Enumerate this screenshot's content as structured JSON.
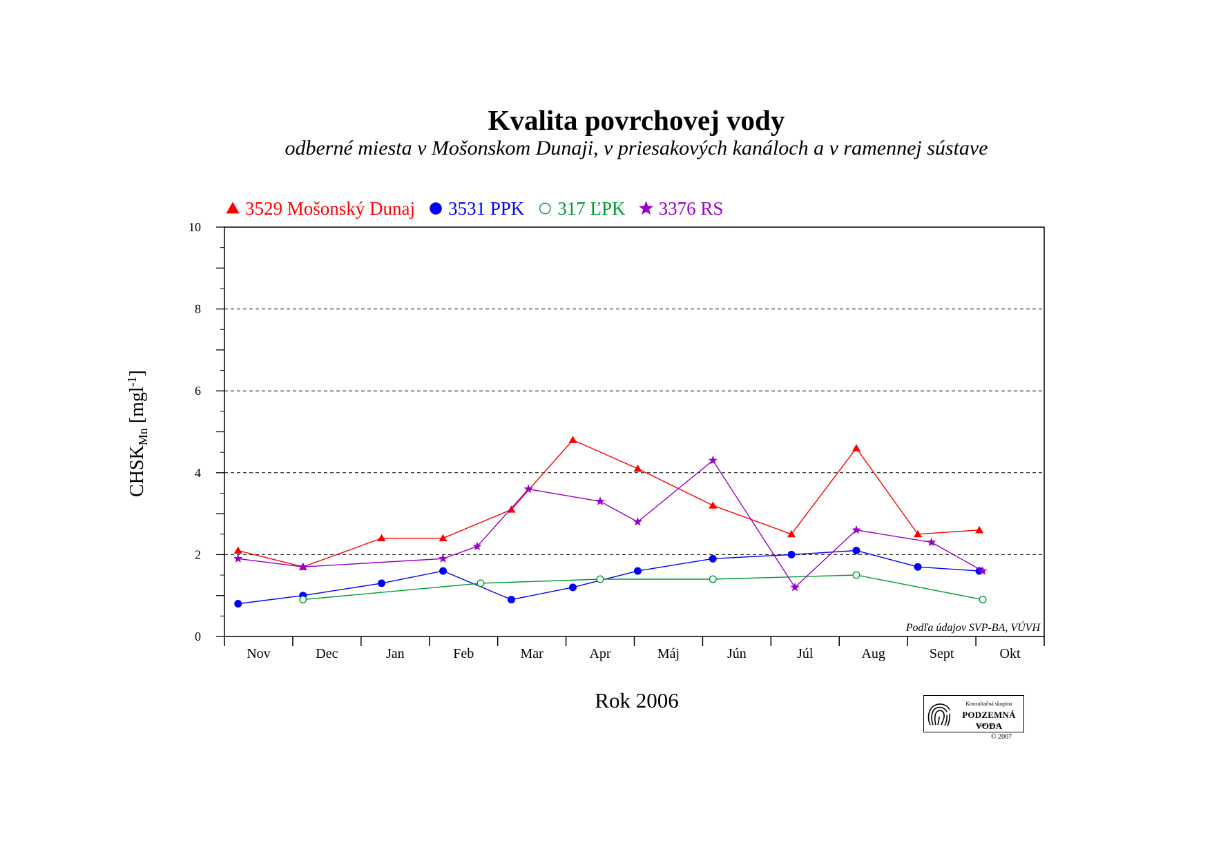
{
  "chart_data": {
    "type": "line",
    "title": "Kvalita povrchovej vody",
    "subtitle": "odberné miesta v Mošonskom Dunaji, v priesakových kanáloch a v ramennej sústave",
    "xlabel": "Rok 2006",
    "ylabel": "CHSK",
    "ylabel_subscript": "Mn",
    "ylabel_unit_prefix": " [mgl",
    "ylabel_unit_superscript": "-1",
    "ylabel_unit_suffix": "]",
    "ylim": [
      0,
      10
    ],
    "y_ticks": [
      0,
      2,
      4,
      6,
      8,
      10
    ],
    "grid_y": [
      2,
      4,
      6,
      8
    ],
    "grid": "dashed horizontal",
    "legend_position": "top-left",
    "categories": [
      "Nov",
      "Dec",
      "Jan",
      "Feb",
      "Mar",
      "Apr",
      "Máj",
      "Jún",
      "Júl",
      "Aug",
      "Sept",
      "Okt"
    ],
    "x_ticks": [
      0,
      1,
      2,
      3,
      4,
      5,
      6,
      7,
      8,
      9,
      10,
      11,
      12
    ],
    "source_note": "Podľa údajov SVP-BA, VÚVH",
    "series": [
      {
        "name": "3529 Mošonský Dunaj",
        "color": "#ff0000",
        "marker": "triangle",
        "points": [
          [
            0.2,
            2.1
          ],
          [
            1.15,
            1.7
          ],
          [
            2.3,
            2.4
          ],
          [
            3.2,
            2.4
          ],
          [
            4.2,
            3.1
          ],
          [
            5.1,
            4.8
          ],
          [
            6.05,
            4.1
          ],
          [
            7.15,
            3.2
          ],
          [
            8.3,
            2.5
          ],
          [
            9.25,
            4.6
          ],
          [
            10.15,
            2.5
          ],
          [
            11.05,
            2.6
          ]
        ]
      },
      {
        "name": "3531 PPK",
        "color": "#0000ff",
        "marker": "circle-filled",
        "points": [
          [
            0.2,
            0.8
          ],
          [
            1.15,
            1.0
          ],
          [
            2.3,
            1.3
          ],
          [
            3.2,
            1.6
          ],
          [
            4.2,
            0.9
          ],
          [
            5.1,
            1.2
          ],
          [
            6.05,
            1.6
          ],
          [
            7.15,
            1.9
          ],
          [
            8.3,
            2.0
          ],
          [
            9.25,
            2.1
          ],
          [
            10.15,
            1.7
          ],
          [
            11.05,
            1.6
          ]
        ]
      },
      {
        "name": "317 ĽPK",
        "color": "#009933",
        "marker": "circle-open",
        "points": [
          [
            1.15,
            0.9
          ],
          [
            3.75,
            1.3
          ],
          [
            5.5,
            1.4
          ],
          [
            7.15,
            1.4
          ],
          [
            9.25,
            1.5
          ],
          [
            11.1,
            0.9
          ]
        ]
      },
      {
        "name": "3376 RS",
        "color": "#9900cc",
        "marker": "star",
        "points": [
          [
            0.2,
            1.9
          ],
          [
            1.15,
            1.7
          ],
          [
            3.2,
            1.9
          ],
          [
            3.7,
            2.2
          ],
          [
            4.45,
            3.6
          ],
          [
            5.5,
            3.3
          ],
          [
            6.05,
            2.8
          ],
          [
            7.15,
            4.3
          ],
          [
            8.35,
            1.2
          ],
          [
            9.25,
            2.6
          ],
          [
            10.35,
            2.3
          ],
          [
            11.1,
            1.6
          ]
        ]
      }
    ]
  },
  "logo": {
    "top_text": "Konzultačná skupina",
    "name": "PODZEMNÁ VODA",
    "bottom_text": "spol. s r. o.",
    "copyright": "© 2007"
  }
}
